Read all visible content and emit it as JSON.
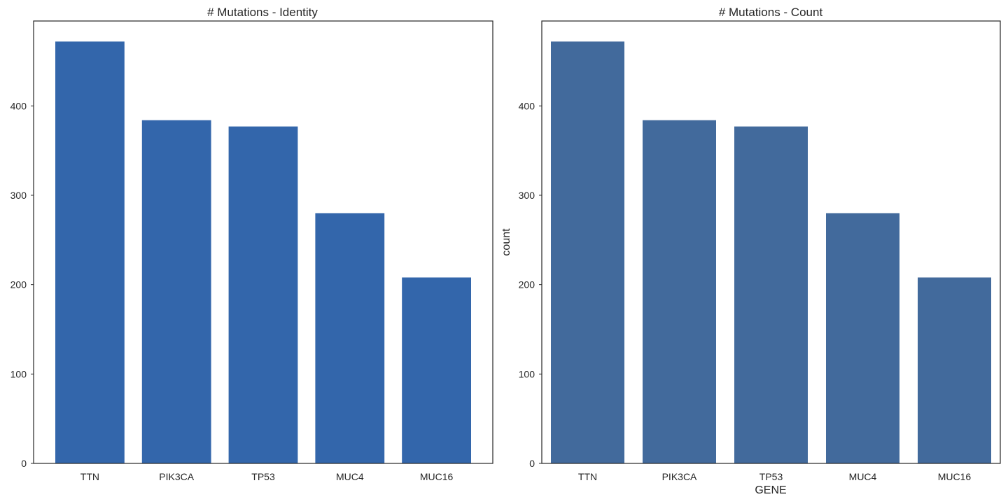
{
  "chart_data": [
    {
      "type": "bar",
      "title": "# Mutations - Identity",
      "xlabel": "",
      "ylabel": "",
      "categories": [
        "TTN",
        "PIK3CA",
        "TP53",
        "MUC4",
        "MUC16"
      ],
      "values": [
        472,
        384,
        377,
        280,
        208
      ],
      "ylim": [
        0,
        495
      ],
      "yticks": [
        "0",
        "100",
        "200",
        "300",
        "400"
      ],
      "bar_color": "#3366ab",
      "grid": false
    },
    {
      "type": "bar",
      "title": "# Mutations - Count",
      "xlabel": "GENE",
      "ylabel": "count",
      "categories": [
        "TTN",
        "PIK3CA",
        "TP53",
        "MUC4",
        "MUC16"
      ],
      "values": [
        472,
        384,
        377,
        280,
        208
      ],
      "ylim": [
        0,
        495
      ],
      "yticks": [
        "0",
        "100",
        "200",
        "300",
        "400"
      ],
      "bar_color": "#426a9c",
      "grid": false
    }
  ]
}
